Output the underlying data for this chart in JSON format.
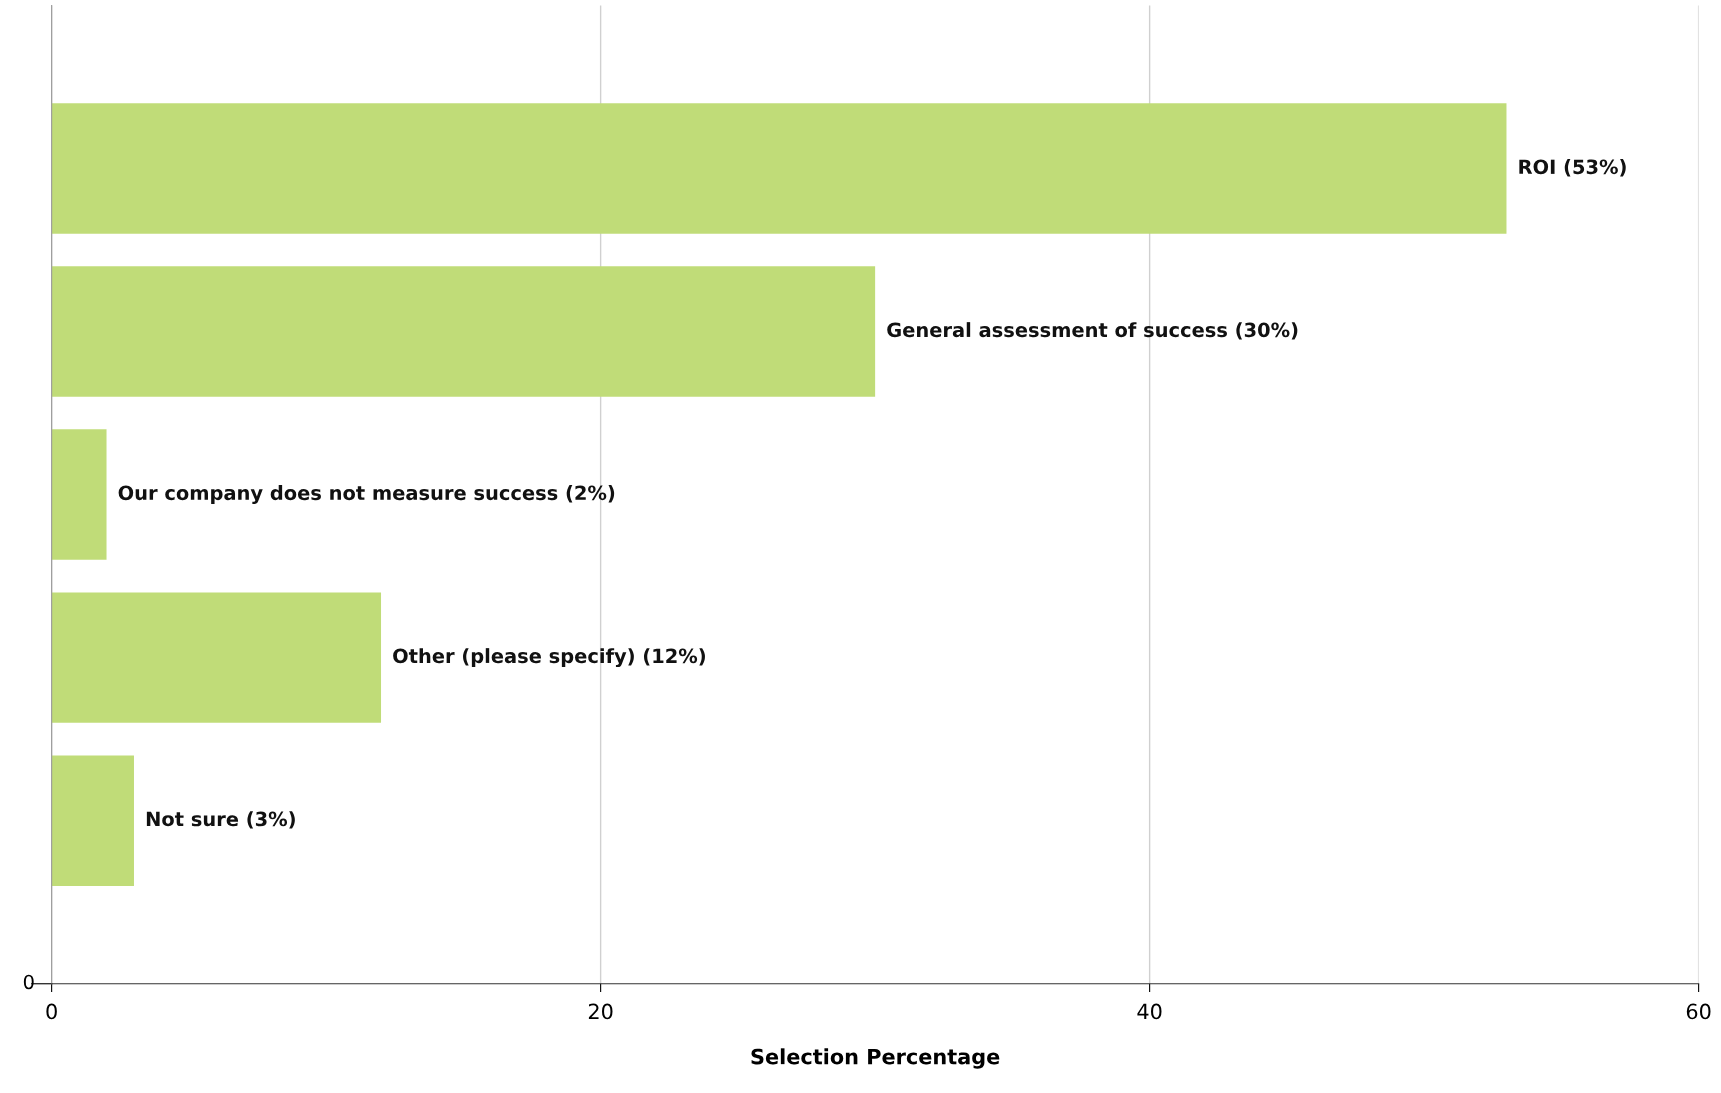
{
  "chart_data": {
    "type": "bar",
    "orientation": "horizontal",
    "xlabel": "Selection Percentage",
    "categories": [
      null,
      null,
      null,
      null,
      null
    ],
    "values": [
      53,
      30,
      2,
      12,
      3
    ],
    "value_labels": [
      "ROI (53%)",
      "General assessment of success (30%)",
      "Our company does not measure success (2%)",
      "Other (please specify) (12%)",
      "Not sure (3%)"
    ],
    "color": "#c0dc78",
    "xlim": [
      0,
      60
    ],
    "xticks": [
      0,
      20,
      40,
      60
    ],
    "grid": "x",
    "annotations": [
      "0"
    ]
  }
}
